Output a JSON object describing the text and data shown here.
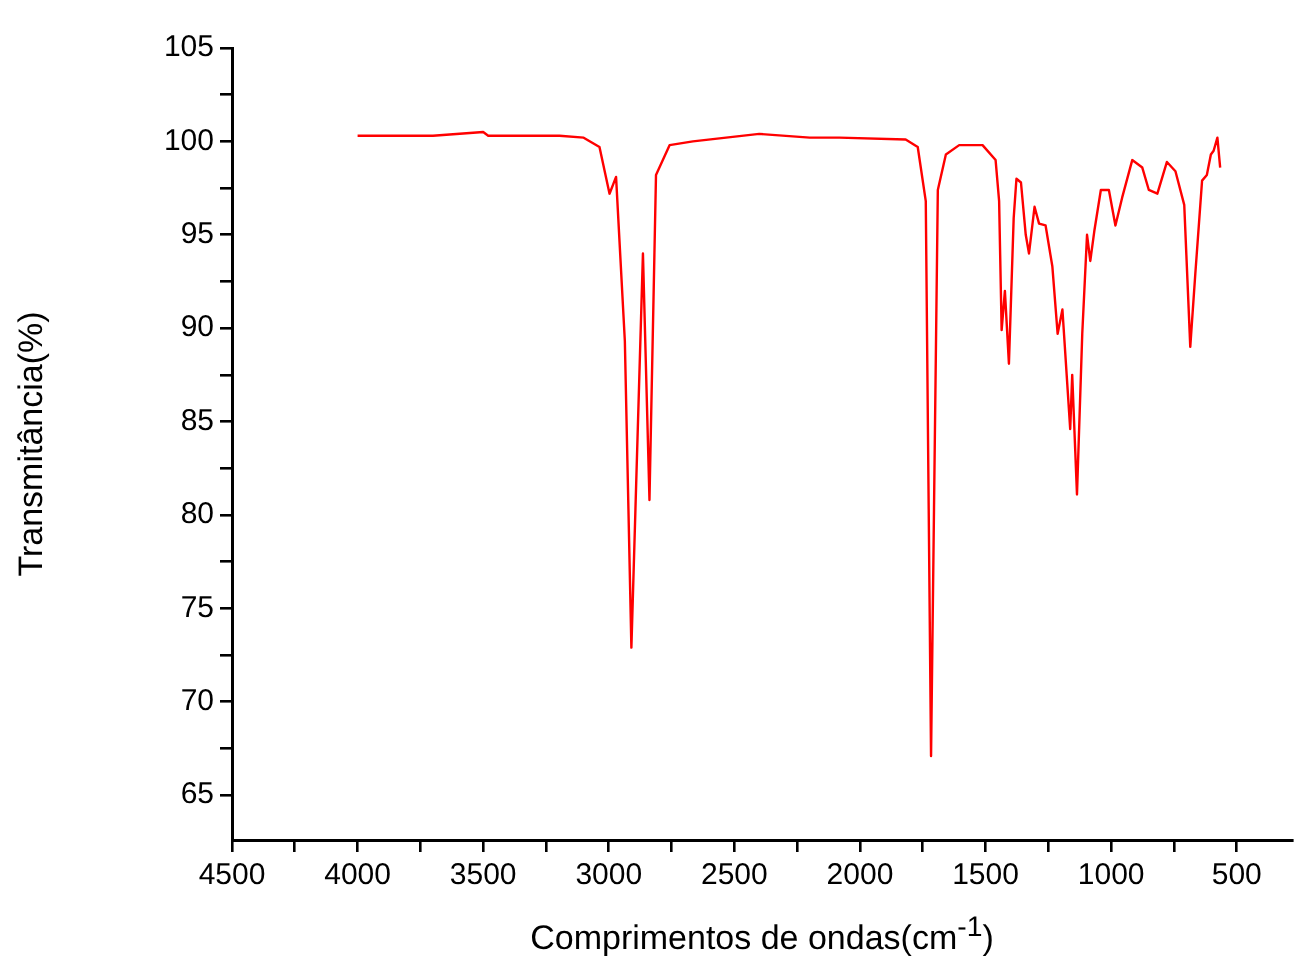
{
  "chart_data": {
    "type": "line",
    "xlabel": "Comprimentos de ondas(cm$^{-1}$)",
    "ylabel": "Transmitância(%)",
    "x": [
      4000,
      3700,
      3500,
      3480,
      3300,
      3196,
      3100,
      3037,
      2997,
      2971,
      2936,
      2910,
      2864,
      2838,
      2812,
      2758,
      2665,
      2401,
      2200,
      2082,
      1818,
      1770,
      1738,
      1717,
      1690,
      1658,
      1605,
      1512,
      1460,
      1446,
      1436,
      1423,
      1407,
      1388,
      1377,
      1359,
      1340,
      1327,
      1305,
      1287,
      1261,
      1234,
      1213,
      1194,
      1163,
      1155,
      1136,
      1115,
      1096,
      1083,
      1067,
      1041,
      1009,
      983,
      956,
      916,
      876,
      850,
      816,
      778,
      744,
      709,
      685,
      665,
      638,
      619,
      603,
      592,
      577,
      566
    ],
    "series": [
      {
        "color": "#ff0000",
        "values": [
          100.3,
          100.3,
          100.5,
          100.3,
          100.3,
          100.3,
          100.2,
          99.7,
          97.2,
          98.1,
          89.3,
          72.9,
          94.0,
          80.8,
          98.2,
          99.8,
          100.0,
          100.4,
          100.2,
          100.2,
          100.1,
          99.7,
          96.8,
          67.1,
          97.4,
          99.3,
          99.8,
          99.8,
          99.0,
          96.8,
          89.9,
          92.0,
          88.1,
          95.9,
          98.0,
          97.8,
          95.0,
          94.0,
          96.5,
          95.6,
          95.5,
          93.3,
          89.7,
          91.0,
          84.6,
          87.5,
          81.1,
          89.7,
          95.0,
          93.6,
          95.2,
          97.4,
          97.4,
          95.5,
          97.0,
          99.0,
          98.6,
          97.4,
          97.2,
          98.9,
          98.4,
          96.6,
          89.0,
          92.9,
          97.9,
          98.2,
          99.3,
          99.5,
          100.2,
          98.6
        ]
      }
    ],
    "xlim": [
      4500,
      280
    ],
    "xticks": [
      4500,
      {
        "value": 4250,
        "label": null
      },
      4000,
      {
        "value": 3750,
        "label": null
      },
      3500,
      {
        "value": 3250,
        "label": null
      },
      3000,
      {
        "value": 2750,
        "label": null
      },
      2500,
      {
        "value": 2250,
        "label": null
      },
      2000,
      {
        "value": 1750,
        "label": null
      },
      1500,
      {
        "value": 1250,
        "label": null
      },
      1000,
      {
        "value": 750,
        "label": null
      },
      500
    ],
    "ylim": [
      62.6,
      105
    ],
    "yticks": [
      65,
      {
        "value": 67.5,
        "label": null
      },
      70,
      {
        "value": 72.5,
        "label": null
      },
      75,
      {
        "value": 77.5,
        "label": null
      },
      80,
      {
        "value": 82.5,
        "label": null
      },
      85,
      {
        "value": 87.5,
        "label": null
      },
      90,
      {
        "value": 92.5,
        "label": null
      },
      95,
      {
        "value": 97.5,
        "label": null
      },
      100,
      {
        "value": 102.5,
        "label": null
      },
      105
    ],
    "grid": false,
    "legend": false,
    "marker": "none",
    "line_style": "solid"
  }
}
